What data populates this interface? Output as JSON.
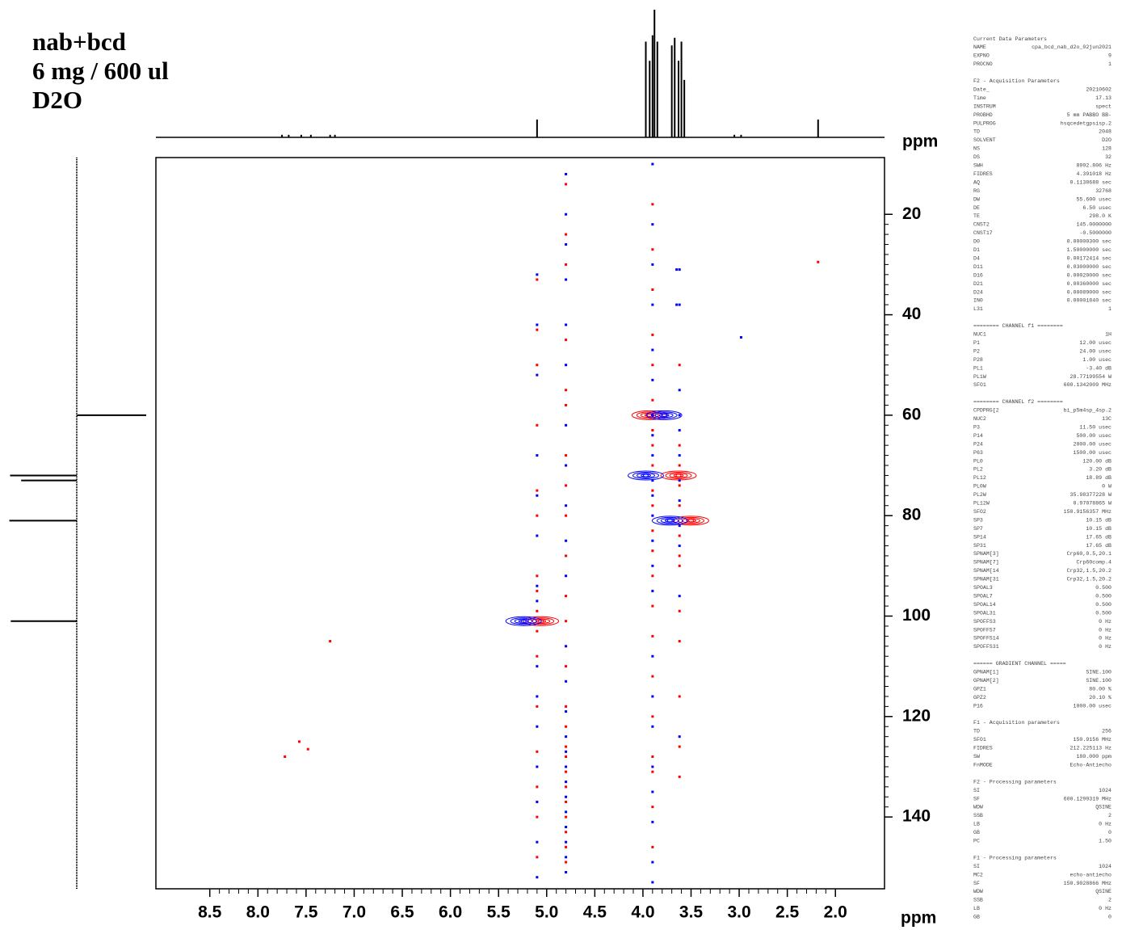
{
  "chart_data": {
    "type": "nmr2d",
    "title": [
      "nab+bcd",
      "6 mg / 600 ul",
      "D2O"
    ],
    "xlabel": "ppm",
    "ylabel": "ppm",
    "xlim": [
      9.06,
      1.49
    ],
    "ylim": [
      8.7,
      154.3
    ],
    "xticks": [
      {
        "value": 8.5,
        "label": "8.5"
      },
      {
        "value": 8,
        "label": "8.0"
      },
      {
        "value": 7.5,
        "label": "7.5"
      },
      {
        "value": 7,
        "label": "7.0"
      },
      {
        "value": 6.5,
        "label": "6.5"
      },
      {
        "value": 6,
        "label": "6.0"
      },
      {
        "value": 5.5,
        "label": "5.5"
      },
      {
        "value": 5,
        "label": "5.0"
      },
      {
        "value": 4.5,
        "label": "4.5"
      },
      {
        "value": 4,
        "label": "4.0"
      },
      {
        "value": 3.5,
        "label": "3.5"
      },
      {
        "value": 3,
        "label": "3.0"
      },
      {
        "value": 2.5,
        "label": "2.5"
      },
      {
        "value": 2,
        "label": "2.0"
      }
    ],
    "yticks": [
      20,
      40,
      60,
      80,
      100,
      120,
      140
    ],
    "series": [
      {
        "color": "#ff0000",
        "marker": "contour",
        "x": [
          5.06,
          3.93,
          3.63,
          3.5
        ],
        "y": [
          101,
          60,
          72,
          81
        ]
      },
      {
        "color": "#0000ff",
        "marker": "contour",
        "x": [
          5.24,
          3.78,
          3.97,
          3.72
        ],
        "y": [
          101,
          60,
          72,
          81
        ]
      },
      {
        "color": "#ff0000",
        "marker": "dot",
        "x": [
          2.18,
          7.25,
          7.57,
          7.72,
          7.48
        ],
        "y": [
          29.5,
          105,
          125,
          128,
          126.5
        ]
      },
      {
        "color": "#0000ff",
        "marker": "dot",
        "x": [
          2.98,
          3.65,
          3.65
        ],
        "y": [
          44.5,
          38,
          31
        ]
      },
      {
        "color": "#ff0000",
        "marker": "dot",
        "x": [
          4.8,
          4.8,
          4.8,
          4.8,
          4.8,
          4.8,
          4.8,
          4.8,
          4.8,
          4.8,
          4.8,
          4.8,
          4.8,
          4.8,
          4.8,
          4.8,
          4.8,
          4.8,
          4.8,
          4.8,
          4.8,
          4.8,
          4.8,
          4.8
        ],
        "y": [
          14,
          24,
          30,
          45,
          55,
          58,
          68,
          74,
          80,
          88,
          96,
          101,
          110,
          118,
          122,
          126,
          128,
          131,
          134,
          137,
          140,
          143,
          146,
          149
        ]
      },
      {
        "color": "#0000ff",
        "marker": "dot",
        "x": [
          4.8,
          4.8,
          4.8,
          4.8,
          4.8,
          4.8,
          4.8,
          4.8,
          4.8,
          4.8,
          4.8,
          4.8,
          4.8,
          4.8,
          4.8,
          4.8,
          4.8,
          4.8,
          4.8,
          4.8,
          4.8,
          4.8,
          4.8,
          4.8
        ],
        "y": [
          12,
          20,
          26,
          33,
          42,
          50,
          62,
          70,
          78,
          85,
          92,
          106,
          113,
          119,
          124,
          127,
          130,
          133,
          136,
          139,
          142,
          145,
          148,
          151
        ]
      },
      {
        "color": "#ff0000",
        "marker": "dot",
        "x": [
          3.9,
          3.9,
          3.9,
          3.9,
          3.9,
          3.9,
          3.9,
          3.9,
          3.9,
          3.9,
          3.9,
          3.9,
          3.9,
          3.9,
          3.9,
          3.9,
          3.9,
          3.9,
          3.9,
          3.9,
          3.9,
          3.9
        ],
        "y": [
          18,
          27,
          35,
          44,
          50,
          57,
          63,
          66,
          70,
          75,
          78,
          83,
          87,
          92,
          98,
          104,
          112,
          120,
          128,
          131,
          138,
          146
        ]
      },
      {
        "color": "#0000ff",
        "marker": "dot",
        "x": [
          3.9,
          3.9,
          3.9,
          3.9,
          3.9,
          3.9,
          3.9,
          3.9,
          3.9,
          3.9,
          3.9,
          3.9,
          3.9,
          3.9,
          3.9,
          3.9,
          3.9,
          3.9,
          3.9,
          3.9,
          3.9,
          3.9,
          3.9
        ],
        "y": [
          10,
          22,
          30,
          38,
          47,
          53,
          60,
          64,
          68,
          73,
          76,
          80,
          85,
          90,
          95,
          108,
          116,
          122,
          130,
          135,
          141,
          149,
          153
        ]
      },
      {
        "color": "#ff0000",
        "marker": "dot",
        "x": [
          5.1,
          5.1,
          5.1,
          5.1,
          5.1,
          5.1,
          5.1,
          5.1,
          5.1,
          5.1,
          5.1,
          5.1,
          5.1,
          5.1,
          5.1,
          5.1
        ],
        "y": [
          33,
          43,
          50,
          62,
          75,
          80,
          92,
          95,
          99,
          103,
          108,
          118,
          127,
          134,
          140,
          148
        ]
      },
      {
        "color": "#0000ff",
        "marker": "dot",
        "x": [
          5.1,
          5.1,
          5.1,
          5.1,
          5.1,
          5.1,
          5.1,
          5.1,
          5.1,
          5.1,
          5.1,
          5.1,
          5.1,
          5.1,
          5.1
        ],
        "y": [
          32,
          42,
          52,
          68,
          76,
          84,
          94,
          97,
          110,
          116,
          122,
          130,
          137,
          145,
          152
        ]
      },
      {
        "color": "#ff0000",
        "marker": "dot",
        "x": [
          3.62,
          3.62,
          3.62,
          3.62,
          3.62,
          3.62,
          3.62,
          3.62,
          3.62,
          3.62,
          3.62,
          3.62,
          3.62
        ],
        "y": [
          50,
          66,
          70,
          74,
          78,
          84,
          88,
          90,
          99,
          105,
          116,
          126,
          132
        ]
      },
      {
        "color": "#0000ff",
        "marker": "dot",
        "x": [
          3.62,
          3.62,
          3.62,
          3.62,
          3.62,
          3.62,
          3.62,
          3.62,
          3.62,
          3.62,
          3.62,
          3.62
        ],
        "y": [
          31,
          38,
          55,
          60,
          63,
          68,
          73,
          77,
          82,
          86,
          96,
          124
        ]
      }
    ],
    "f2_projection": {
      "ppm": [
        7.75,
        7.68,
        7.55,
        7.45,
        7.25,
        7.2,
        5.1,
        3.97,
        3.93,
        3.9,
        3.88,
        3.85,
        3.7,
        3.67,
        3.63,
        3.6,
        3.57,
        3.05,
        2.98,
        2.18
      ],
      "intensity": [
        2,
        2,
        2,
        2,
        2,
        2,
        14,
        75,
        60,
        80,
        100,
        75,
        72,
        78,
        60,
        75,
        45,
        2,
        2,
        14
      ]
    },
    "f1_projection": {
      "ppm": [
        60,
        72,
        73,
        81,
        101
      ],
      "intensity": [
        100,
        -96,
        -80,
        -97,
        -95
      ]
    }
  },
  "parameters": [
    {
      "title": "Current Data Parameters",
      "rows": [
        [
          "NAME",
          "cpa_bcd_nab_d2o_02jun2021"
        ],
        [
          "EXPNO",
          "9"
        ],
        [
          "PROCNO",
          "1"
        ]
      ]
    },
    {
      "title": "F2 - Acquisition Parameters",
      "rows": [
        [
          "Date_",
          "20210602"
        ],
        [
          "Time",
          "17.13"
        ],
        [
          "INSTRUM",
          "spect"
        ],
        [
          "PROBHD",
          "5 mm PABBO BB-"
        ],
        [
          "PULPROG",
          "hsqcedetgpsisp.2"
        ],
        [
          "TD",
          "2048"
        ],
        [
          "SOLVENT",
          "D2O"
        ],
        [
          "NS",
          "128"
        ],
        [
          "DS",
          "32"
        ],
        [
          "SWH",
          "8992.806 Hz"
        ],
        [
          "FIDRES",
          "4.391018 Hz"
        ],
        [
          "AQ",
          "0.1138688 sec"
        ],
        [
          "RG",
          "32768"
        ],
        [
          "DW",
          "55.600 usec"
        ],
        [
          "DE",
          "6.50 usec"
        ],
        [
          "TE",
          "298.0 K"
        ],
        [
          "CNST2",
          "145.0000000"
        ],
        [
          "CNST17",
          "-0.5000000"
        ],
        [
          "D0",
          "0.00000300 sec"
        ],
        [
          "D1",
          "1.50000000 sec"
        ],
        [
          "D4",
          "0.00172414 sec"
        ],
        [
          "D11",
          "0.03000000 sec"
        ],
        [
          "D16",
          "0.00020000 sec"
        ],
        [
          "D21",
          "0.00360000 sec"
        ],
        [
          "D24",
          "0.00089000 sec"
        ],
        [
          "IN0",
          "0.00001840 sec"
        ],
        [
          "L31",
          "1"
        ]
      ]
    },
    {
      "title": "======== CHANNEL f1 ========",
      "rows": [
        [
          "NUC1",
          "1H"
        ],
        [
          "P1",
          "12.00 usec"
        ],
        [
          "P2",
          "24.00 usec"
        ],
        [
          "P28",
          "1.00 usec"
        ],
        [
          "PL1",
          "-3.40 dB"
        ],
        [
          "PL1W",
          "28.77199554 W"
        ],
        [
          "SFO1",
          "600.1342009 MHz"
        ]
      ]
    },
    {
      "title": "======== CHANNEL f2 ========",
      "rows": [
        [
          "CPDPRG[2",
          "bi_p5m4sp_4sp.2"
        ],
        [
          "NUC2",
          "13C"
        ],
        [
          "P3",
          "11.50 usec"
        ],
        [
          "P14",
          "500.00 usec"
        ],
        [
          "P24",
          "2000.00 usec"
        ],
        [
          "P63",
          "1500.00 usec"
        ],
        [
          "PL0",
          "120.00 dB"
        ],
        [
          "PL2",
          "3.20 dB"
        ],
        [
          "PL12",
          "18.89 dB"
        ],
        [
          "PL0W",
          "0 W"
        ],
        [
          "PL2W",
          "35.98377228 W"
        ],
        [
          "PL12W",
          "0.97078865 W"
        ],
        [
          "SFO2",
          "150.9156357 MHz"
        ],
        [
          "SP3",
          "10.15 dB"
        ],
        [
          "SP7",
          "10.15 dB"
        ],
        [
          "SP14",
          "17.65 dB"
        ],
        [
          "SP31",
          "17.65 dB"
        ],
        [
          "SPNAM[3]",
          "Crp60,0.5,20.1"
        ],
        [
          "SPNAM[7]",
          "Crp60comp.4"
        ],
        [
          "SPNAM[14",
          "Crp32,1.5,20.2"
        ],
        [
          "SPNAM[31",
          "Crp32,1.5,20.2"
        ],
        [
          "SPOAL3",
          "0.500"
        ],
        [
          "SPOAL7",
          "0.500"
        ],
        [
          "SPOAL14",
          "0.500"
        ],
        [
          "SPOAL31",
          "0.500"
        ],
        [
          "SPOFFS3",
          "0 Hz"
        ],
        [
          "SPOFFS7",
          "0 Hz"
        ],
        [
          "SPOFFS14",
          "0 Hz"
        ],
        [
          "SPOFFS31",
          "0 Hz"
        ]
      ]
    },
    {
      "title": "====== GRADIENT CHANNEL =====",
      "rows": [
        [
          "GPNAM[1]",
          "SINE.100"
        ],
        [
          "GPNAM[2]",
          "SINE.100"
        ],
        [
          "GPZ1",
          "80.00 %"
        ],
        [
          "GPZ2",
          "20.10 %"
        ],
        [
          "P16",
          "1000.00 usec"
        ]
      ]
    },
    {
      "title": "F1 - Acquisition parameters",
      "rows": [
        [
          "TD",
          "256"
        ],
        [
          "SFO1",
          "150.9156 MHz"
        ],
        [
          "FIDRES",
          "212.225113 Hz"
        ],
        [
          "SW",
          "180.000 ppm"
        ],
        [
          "FnMODE",
          "Echo-Antiecho"
        ]
      ]
    },
    {
      "title": "F2 - Processing parameters",
      "rows": [
        [
          "SI",
          "1024"
        ],
        [
          "SF",
          "600.1299319 MHz"
        ],
        [
          "WDW",
          "QSINE"
        ],
        [
          "SSB",
          "2"
        ],
        [
          "LB",
          "0 Hz"
        ],
        [
          "GB",
          "0"
        ],
        [
          "PC",
          "1.50"
        ]
      ]
    },
    {
      "title": "F1 - Processing parameters",
      "rows": [
        [
          "SI",
          "1024"
        ],
        [
          "MC2",
          "echo-antiecho"
        ],
        [
          "SF",
          "150.9028866 MHz"
        ],
        [
          "WDW",
          "QSINE"
        ],
        [
          "SSB",
          "2"
        ],
        [
          "LB",
          "0 Hz"
        ],
        [
          "GB",
          "0"
        ]
      ]
    }
  ]
}
